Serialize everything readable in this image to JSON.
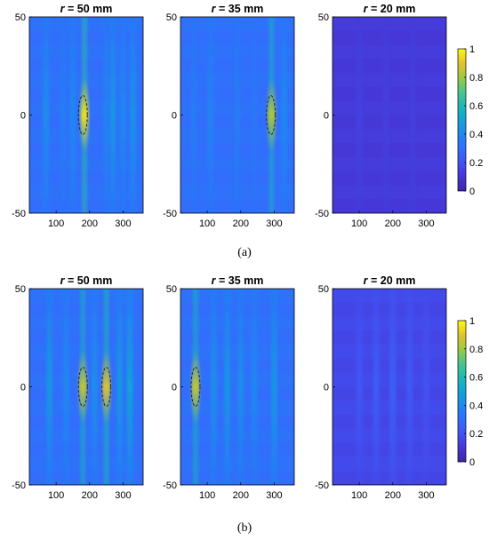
{
  "chart_data": [
    {
      "type": "heatmap",
      "group_label": "(a)",
      "colorbar": {
        "min": 0,
        "max": 1,
        "ticks": [
          "0",
          "0.2",
          "0.4",
          "0.6",
          "0.8",
          "1"
        ]
      },
      "panels": [
        {
          "title_var": "r",
          "title_rest": " = 50 mm",
          "xlim": [
            20,
            360
          ],
          "ylim": [
            -50,
            50
          ],
          "xticks": [
            "100",
            "200",
            "300"
          ],
          "yticks": [
            "-50",
            "0",
            "50"
          ],
          "base_level": 0.3,
          "stripes": [
            {
              "x": 70,
              "v": 0.42
            },
            {
              "x": 120,
              "v": 0.36
            },
            {
              "x": 150,
              "v": 0.4
            },
            {
              "x": 185,
              "v": 0.95
            },
            {
              "x": 250,
              "v": 0.38
            },
            {
              "x": 270,
              "v": 0.45
            },
            {
              "x": 300,
              "v": 0.4
            },
            {
              "x": 330,
              "v": 0.44
            }
          ],
          "targets": [
            {
              "x": 180,
              "y": 0
            }
          ]
        },
        {
          "title_var": "r",
          "title_rest": " = 35 mm",
          "xlim": [
            20,
            360
          ],
          "ylim": [
            -50,
            50
          ],
          "xticks": [
            "100",
            "200",
            "300"
          ],
          "yticks": [
            "-50",
            "0",
            "50"
          ],
          "base_level": 0.3,
          "stripes": [
            {
              "x": 60,
              "v": 0.36
            },
            {
              "x": 110,
              "v": 0.38
            },
            {
              "x": 190,
              "v": 0.36
            },
            {
              "x": 240,
              "v": 0.34
            },
            {
              "x": 292,
              "v": 0.82
            },
            {
              "x": 330,
              "v": 0.4
            }
          ],
          "targets": [
            {
              "x": 290,
              "y": 0
            }
          ]
        },
        {
          "title_var": "r",
          "title_rest": " = 20 mm",
          "xlim": [
            20,
            360
          ],
          "ylim": [
            -50,
            50
          ],
          "xticks": [
            "100",
            "200",
            "300"
          ],
          "yticks": [
            "-50",
            "0",
            "50"
          ],
          "base_level": 0.1,
          "stripes": [
            {
              "x": 100,
              "v": 0.14
            },
            {
              "x": 180,
              "v": 0.13
            },
            {
              "x": 260,
              "v": 0.13
            }
          ],
          "targets": []
        }
      ]
    },
    {
      "type": "heatmap",
      "group_label": "(b)",
      "colorbar": {
        "min": 0,
        "max": 1,
        "ticks": [
          "0",
          "0.2",
          "0.4",
          "0.6",
          "0.8",
          "1"
        ]
      },
      "panels": [
        {
          "title_var": "r",
          "title_rest": " = 50 mm",
          "xlim": [
            20,
            360
          ],
          "ylim": [
            -50,
            50
          ],
          "xticks": [
            "100",
            "200",
            "300"
          ],
          "yticks": [
            "-50",
            "0",
            "50"
          ],
          "base_level": 0.3,
          "stripes": [
            {
              "x": 80,
              "v": 0.45
            },
            {
              "x": 130,
              "v": 0.4
            },
            {
              "x": 180,
              "v": 0.85
            },
            {
              "x": 215,
              "v": 0.42
            },
            {
              "x": 250,
              "v": 0.9
            },
            {
              "x": 290,
              "v": 0.45
            },
            {
              "x": 320,
              "v": 0.5
            }
          ],
          "targets": [
            {
              "x": 180,
              "y": 0
            },
            {
              "x": 250,
              "y": 0
            }
          ]
        },
        {
          "title_var": "r",
          "title_rest": " = 35 mm",
          "xlim": [
            20,
            360
          ],
          "ylim": [
            -50,
            50
          ],
          "xticks": [
            "100",
            "200",
            "300"
          ],
          "yticks": [
            "-50",
            "0",
            "50"
          ],
          "base_level": 0.3,
          "stripes": [
            {
              "x": 65,
              "v": 0.85
            },
            {
              "x": 120,
              "v": 0.42
            },
            {
              "x": 160,
              "v": 0.45
            },
            {
              "x": 200,
              "v": 0.42
            },
            {
              "x": 240,
              "v": 0.4
            },
            {
              "x": 300,
              "v": 0.45
            }
          ],
          "targets": [
            {
              "x": 65,
              "y": 0
            }
          ]
        },
        {
          "title_var": "r",
          "title_rest": " = 20 mm",
          "xlim": [
            20,
            360
          ],
          "ylim": [
            -50,
            50
          ],
          "xticks": [
            "100",
            "200",
            "300"
          ],
          "yticks": [
            "-50",
            "0",
            "50"
          ],
          "base_level": 0.15,
          "stripes": [
            {
              "x": 100,
              "v": 0.22
            },
            {
              "x": 150,
              "v": 0.24
            },
            {
              "x": 200,
              "v": 0.25
            },
            {
              "x": 250,
              "v": 0.23
            },
            {
              "x": 300,
              "v": 0.2
            }
          ],
          "targets": []
        }
      ]
    }
  ]
}
